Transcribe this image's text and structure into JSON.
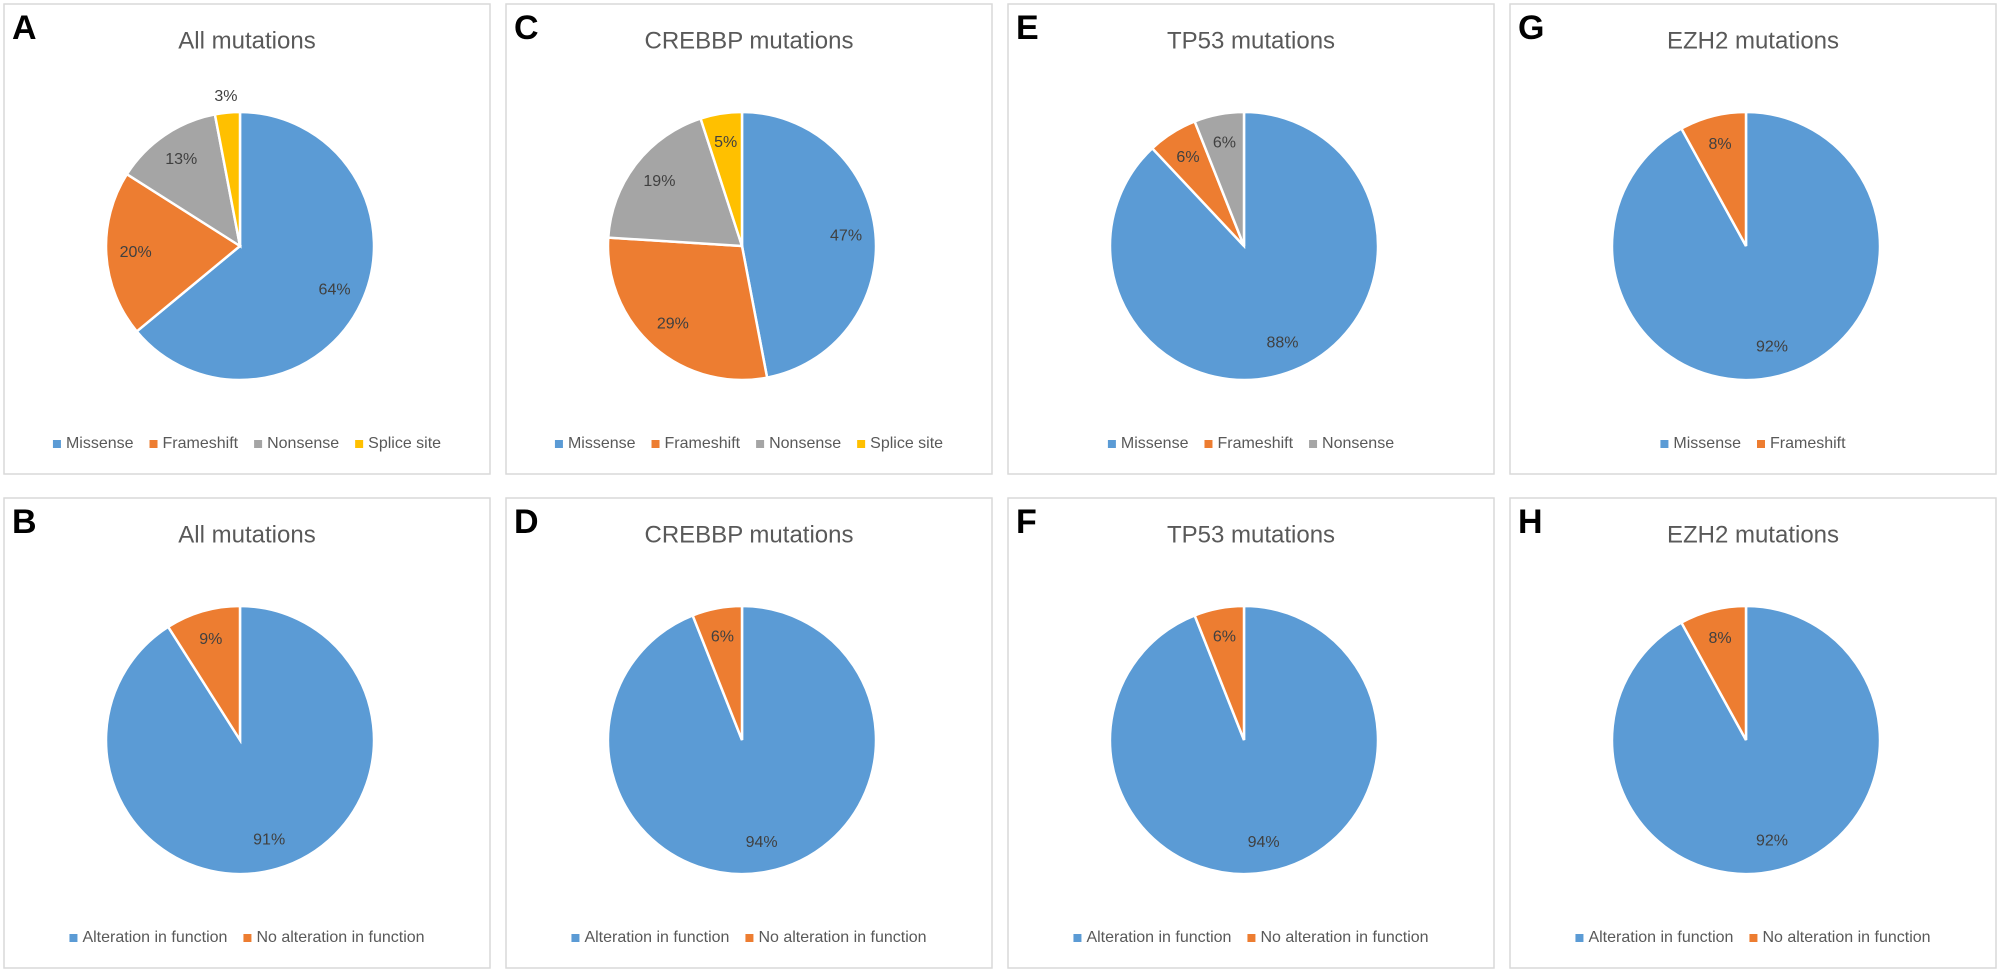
{
  "chart_data": [
    {
      "type": "pie",
      "panel": "A",
      "title": "All mutations",
      "categories": [
        "Missense",
        "Frameshift",
        "Nonsense",
        "Splice site"
      ],
      "values": [
        64,
        20,
        13,
        3
      ],
      "value_labels": [
        "64%",
        "20%",
        "13%",
        "3%"
      ],
      "colors": [
        "#5b9bd5",
        "#ed7d31",
        "#a5a5a5",
        "#ffc000"
      ]
    },
    {
      "type": "pie",
      "panel": "B",
      "title": "All mutations",
      "categories": [
        "Alteration in function",
        "No alteration in function"
      ],
      "values": [
        91,
        9
      ],
      "value_labels": [
        "91%",
        "9%"
      ],
      "colors": [
        "#5b9bd5",
        "#ed7d31"
      ]
    },
    {
      "type": "pie",
      "panel": "C",
      "title": "CREBBP mutations",
      "categories": [
        "Missense",
        "Frameshift",
        "Nonsense",
        "Splice site"
      ],
      "values": [
        47,
        29,
        19,
        5
      ],
      "value_labels": [
        "47%",
        "29%",
        "19%",
        "5%"
      ],
      "colors": [
        "#5b9bd5",
        "#ed7d31",
        "#a5a5a5",
        "#ffc000"
      ]
    },
    {
      "type": "pie",
      "panel": "D",
      "title": "CREBBP mutations",
      "categories": [
        "Alteration in function",
        "No alteration in function"
      ],
      "values": [
        94,
        6
      ],
      "value_labels": [
        "94%",
        "6%"
      ],
      "colors": [
        "#5b9bd5",
        "#ed7d31"
      ]
    },
    {
      "type": "pie",
      "panel": "E",
      "title": "TP53 mutations",
      "categories": [
        "Missense",
        "Frameshift",
        "Nonsense"
      ],
      "values": [
        88,
        6,
        6
      ],
      "value_labels": [
        "88%",
        "6%",
        "6%"
      ],
      "colors": [
        "#5b9bd5",
        "#ed7d31",
        "#a5a5a5"
      ]
    },
    {
      "type": "pie",
      "panel": "F",
      "title": "TP53 mutations",
      "categories": [
        "Alteration in function",
        "No alteration in function"
      ],
      "values": [
        94,
        6
      ],
      "value_labels": [
        "94%",
        "6%"
      ],
      "colors": [
        "#5b9bd5",
        "#ed7d31"
      ]
    },
    {
      "type": "pie",
      "panel": "G",
      "title": "EZH2 mutations",
      "categories": [
        "Missense",
        "Frameshift"
      ],
      "values": [
        92,
        8
      ],
      "value_labels": [
        "92%",
        "8%"
      ],
      "colors": [
        "#5b9bd5",
        "#ed7d31"
      ]
    },
    {
      "type": "pie",
      "panel": "H",
      "title": "EZH2 mutations",
      "categories": [
        "Alteration in function",
        "No alteration in function"
      ],
      "values": [
        92,
        8
      ],
      "value_labels": [
        "92%",
        "8%"
      ],
      "colors": [
        "#5b9bd5",
        "#ed7d31"
      ]
    }
  ]
}
